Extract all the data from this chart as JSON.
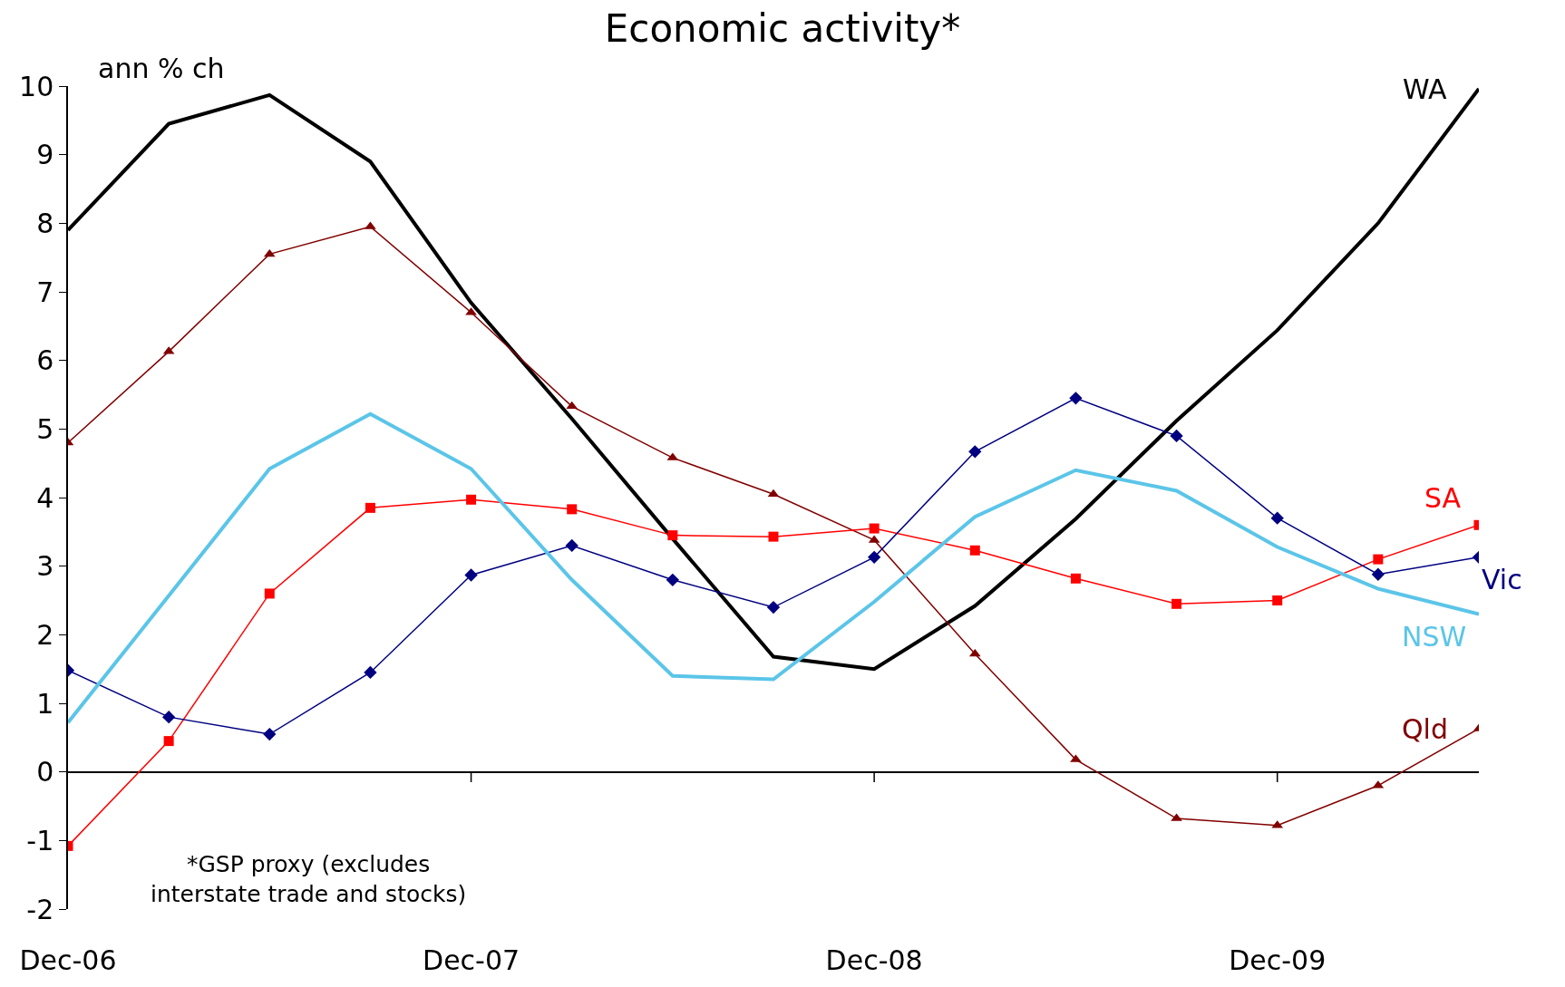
{
  "chart_data": {
    "type": "line",
    "title": "Economic activity*",
    "ylabel": "ann % ch",
    "categories": [
      "Dec-06",
      null,
      null,
      null,
      "Dec-07",
      null,
      null,
      null,
      "Dec-08",
      null,
      null,
      null,
      "Dec-09",
      null,
      null
    ],
    "series": [
      {
        "name": "WA",
        "color": "#000000",
        "marker": "none",
        "values": [
          7.9,
          9.45,
          9.87,
          8.9,
          6.84,
          5.15,
          3.4,
          1.68,
          1.5,
          2.42,
          3.69,
          5.12,
          6.44,
          8.0,
          9.96
        ]
      },
      {
        "name": "Qld",
        "color": "#800000",
        "marker": "triangle",
        "values": [
          4.8,
          6.13,
          7.55,
          7.95,
          6.7,
          5.33,
          4.58,
          4.05,
          3.38,
          1.72,
          0.18,
          -0.68,
          -0.78,
          -0.2,
          0.63
        ]
      },
      {
        "name": "SA",
        "color": "#ff0000",
        "marker": "square",
        "values": [
          -1.08,
          0.45,
          2.6,
          3.85,
          3.97,
          3.83,
          3.45,
          3.43,
          3.55,
          3.23,
          2.82,
          2.45,
          2.5,
          3.1,
          3.6
        ]
      },
      {
        "name": "Vic",
        "color": "#000080",
        "marker": "diamond",
        "values": [
          1.48,
          0.8,
          0.55,
          1.45,
          2.87,
          3.3,
          2.8,
          2.4,
          3.13,
          4.67,
          5.45,
          4.9,
          3.7,
          2.88,
          3.13
        ]
      },
      {
        "name": "NSW",
        "color": "#5bc5e8",
        "marker": "none",
        "values": [
          0.72,
          2.57,
          4.42,
          5.22,
          4.42,
          2.8,
          1.4,
          1.35,
          2.48,
          3.72,
          4.4,
          4.1,
          3.28,
          2.67,
          2.3
        ]
      }
    ],
    "ylim": [
      -2,
      10
    ],
    "yticks": [
      -2,
      -1,
      0,
      1,
      2,
      3,
      4,
      5,
      6,
      7,
      8,
      9,
      10
    ],
    "legend": false,
    "annotations": [
      "*GSP proxy (excludes\ninterstate trade and stocks)"
    ]
  }
}
